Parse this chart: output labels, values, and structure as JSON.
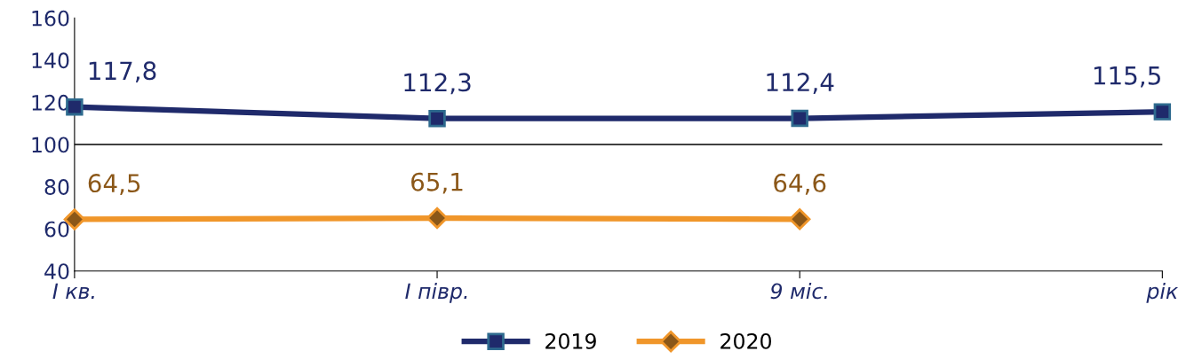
{
  "chart_data": {
    "type": "line",
    "categories": [
      "I кв.",
      "I півр.",
      "9 міс.",
      "рік"
    ],
    "series": [
      {
        "name": "2019",
        "color": "#1f2a6b",
        "marker": "square",
        "values": [
          117.8,
          112.3,
          112.4,
          115.5
        ],
        "value_labels": [
          "117,8",
          "112,3",
          "112,4",
          "115,5"
        ]
      },
      {
        "name": "2020",
        "color": "#f0962a",
        "marker": "diamond",
        "values": [
          64.5,
          65.1,
          64.6,
          null
        ],
        "value_labels": [
          "64,5",
          "65,1",
          "64,6",
          null
        ]
      }
    ],
    "ylim": [
      40,
      160
    ],
    "yticks": [
      40,
      60,
      80,
      100,
      120,
      140,
      160
    ],
    "ref_lines": [
      {
        "axis": "y",
        "value": 100,
        "color": "#000000"
      }
    ],
    "grid": false,
    "legend": "bottom",
    "line_style": "solid"
  }
}
